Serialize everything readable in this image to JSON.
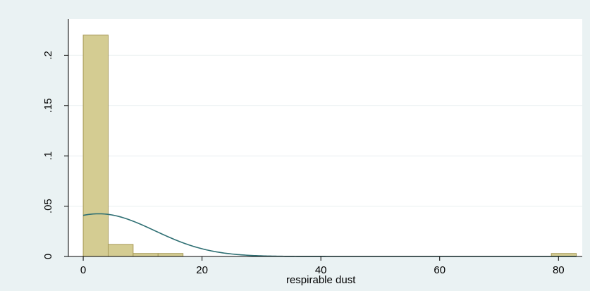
{
  "chart_data": {
    "type": "histogram",
    "title": "",
    "xlabel": "respirable dust",
    "ylabel": "",
    "xlim": [
      -2.5,
      84
    ],
    "ylim": [
      0,
      0.236
    ],
    "x_ticks": [
      0,
      20,
      40,
      60,
      80
    ],
    "x_tick_labels": [
      "0",
      "20",
      "40",
      "60",
      "80"
    ],
    "y_ticks": [
      0,
      0.05,
      0.1,
      0.15,
      0.2
    ],
    "y_tick_labels": [
      "0",
      ".05",
      ".1",
      ".15",
      ".2"
    ],
    "bin_width": 4.2,
    "bins": [
      {
        "start": 0,
        "end": 4.2,
        "density": 0.22
      },
      {
        "start": 4.2,
        "end": 8.4,
        "density": 0.012
      },
      {
        "start": 8.4,
        "end": 12.6,
        "density": 0.003
      },
      {
        "start": 12.6,
        "end": 16.8,
        "density": 0.003
      },
      {
        "start": 78.8,
        "end": 83.0,
        "density": 0.003
      }
    ],
    "normal_curve": {
      "mean": 2.6,
      "sd": 9.4,
      "x_range": [
        0,
        83
      ]
    },
    "grid": true,
    "colors": {
      "bar_fill": "#d4cc92",
      "bar_stroke": "#a89a58",
      "curve": "#2e6f73",
      "plot_bg": "#ffffff",
      "outer_bg": "#eaf2f3",
      "grid": "#e9eff0"
    }
  }
}
